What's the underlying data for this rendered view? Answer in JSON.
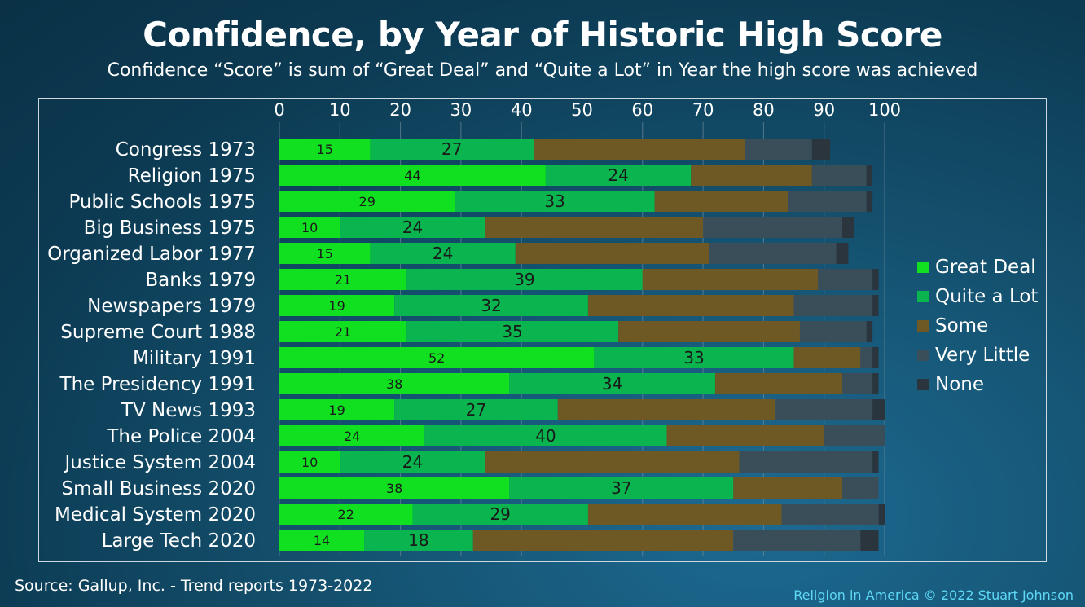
{
  "title": "Confidence, by Year of Historic High Score",
  "subtitle": "Confidence “Score” is sum of “Great Deal” and “Quite a Lot” in Year the high score was achieved",
  "source": "Source: Gallup, Inc. - Trend reports 1973-2022",
  "credit": "Religion in America © 2022 Stuart Johnson",
  "colors": {
    "great_deal": "#10e020",
    "quite_a_lot": "#0ab44e",
    "some": "#6e5824",
    "very_little": "#3a4e5a",
    "none": "#2b353d"
  },
  "chart_data": {
    "type": "bar",
    "orientation": "horizontal",
    "stacked": true,
    "title": "Confidence, by Year of Historic High Score",
    "subtitle": "Confidence “Score” is sum of “Great Deal” and “Quite a Lot” in Year the high score was achieved",
    "xlim": [
      0,
      100
    ],
    "xticks": [
      0,
      10,
      20,
      30,
      40,
      50,
      60,
      70,
      80,
      90,
      100
    ],
    "x_axis_position": "top",
    "grid": true,
    "legend_position": "right",
    "categories": [
      "Congress 1973",
      "Religion 1975",
      "Public Schools 1975",
      "Big Business 1975",
      "Organized Labor 1977",
      "Banks 1979",
      "Newspapers 1979",
      "Supreme Court 1988",
      "Military 1991",
      "The Presidency 1991",
      "TV News 1993",
      "The Police 2004",
      "Justice System 2004",
      "Small Business 2020",
      "Medical System 2020",
      "Large Tech 2020"
    ],
    "series": [
      {
        "name": "Great Deal",
        "color": "#10e020",
        "values": [
          15,
          44,
          29,
          10,
          15,
          21,
          19,
          21,
          52,
          38,
          19,
          24,
          10,
          38,
          22,
          14
        ]
      },
      {
        "name": "Quite a Lot",
        "color": "#0ab44e",
        "values": [
          27,
          24,
          33,
          24,
          24,
          39,
          32,
          35,
          33,
          34,
          27,
          40,
          24,
          37,
          29,
          18
        ]
      },
      {
        "name": "Some",
        "color": "#6e5824",
        "values": [
          35,
          20,
          22,
          36,
          32,
          29,
          34,
          30,
          11,
          21,
          36,
          26,
          42,
          18,
          32,
          43
        ]
      },
      {
        "name": "Very Little",
        "color": "#3a4e5a",
        "values": [
          11,
          9,
          13,
          23,
          21,
          9,
          13,
          11,
          2,
          5,
          16,
          10,
          22,
          6,
          16,
          21
        ]
      },
      {
        "name": "None",
        "color": "#2b353d",
        "values": [
          3,
          1,
          1,
          2,
          2,
          1,
          1,
          1,
          1,
          1,
          2,
          0,
          1,
          0,
          1,
          3
        ]
      }
    ],
    "data_labels": [
      "Great Deal",
      "Quite a Lot"
    ]
  }
}
